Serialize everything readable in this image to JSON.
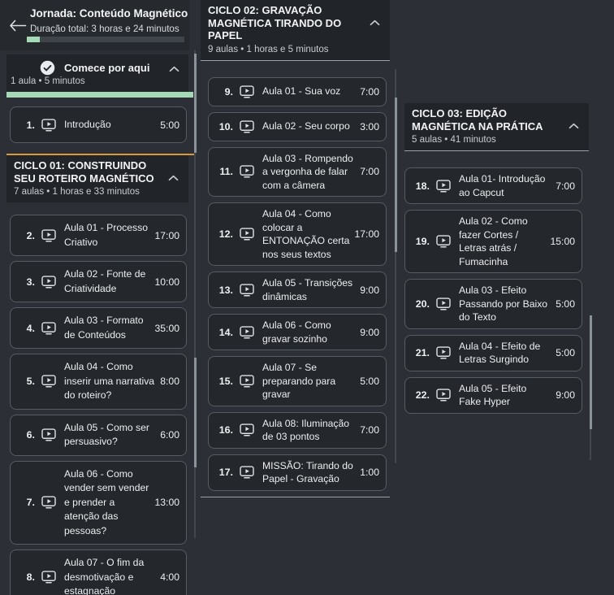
{
  "theme": {
    "page_bg": "#2c3036",
    "header_bg": "#26292e",
    "section_bg": "#212428",
    "card_bg": "#24272b",
    "card_border": "#565c63",
    "divider_orange": "#d59a3c",
    "progress_green": "#a5d9b7",
    "scrollbar_thumb": "#8b9299"
  },
  "header": {
    "title": "Jornada: Conteúdo Magnético",
    "subtitle": "Duração total: 3 horas e 24 minutos",
    "progress_percent": 8
  },
  "columns": [
    {
      "sections": [
        {
          "id": "comece-por-aqui",
          "start": true,
          "completed": true,
          "collapsed": false,
          "title": "Comece por aqui",
          "meta": "1 aula • 5 minutos",
          "progress_percent": 100,
          "items": [
            {
              "num": "1.",
              "title": "Introdução",
              "duration": "5:00"
            }
          ]
        },
        {
          "id": "ciclo-01",
          "divider_top": true,
          "collapsed": false,
          "title": "CICLO 01: CONSTRUINDO SEU ROTEIRO MAGNÉTICO",
          "meta": "7 aulas • 1 horas e 33 minutos",
          "items": [
            {
              "num": "2.",
              "title": "Aula 01 - Processo Criativo",
              "duration": "17:00"
            },
            {
              "num": "3.",
              "title": "Aula 02 - Fonte de Criatividade",
              "duration": "10:00"
            },
            {
              "num": "4.",
              "title": "Aula 03 - Formato de Conteúdos",
              "duration": "35:00"
            },
            {
              "num": "5.",
              "title": "Aula 04 - Como inserir uma narrativa do roteiro?",
              "duration": "8:00"
            },
            {
              "num": "6.",
              "title": "Aula 05 - Como ser persuasivo?",
              "duration": "6:00"
            },
            {
              "num": "7.",
              "title": "Aula 06 - Como vender sem vender e prender a atenção das pessoas?",
              "duration": "13:00"
            },
            {
              "num": "8.",
              "title": "Aula 07 - O fim da desmotivação e estagnação",
              "duration": "4:00"
            }
          ]
        }
      ]
    },
    {
      "sections": [
        {
          "id": "ciclo-02",
          "collapsed": false,
          "bottom_border": true,
          "title": "CICLO 02: GRAVAÇÃO MAGNÉTICA TIRANDO DO PAPEL",
          "meta": "9 aulas • 1 horas e 5 minutos",
          "items": [
            {
              "num": "9.",
              "title": "Aula 01 - Sua voz",
              "duration": "7:00"
            },
            {
              "num": "10.",
              "title": "Aula 02 - Seu corpo",
              "duration": "3:00"
            },
            {
              "num": "11.",
              "title": "Aula 03 - Rompendo a vergonha de falar com a câmera",
              "duration": "7:00"
            },
            {
              "num": "12.",
              "title": "Aula 04 - Como colocar a ENTONAÇÃO certa nos seus textos",
              "duration": "17:00"
            },
            {
              "num": "13.",
              "title": "Aula 05 - Transições dinâmicas",
              "duration": "9:00"
            },
            {
              "num": "14.",
              "title": "Aula 06 - Como gravar sozinho",
              "duration": "9:00"
            },
            {
              "num": "15.",
              "title": "Aula 07 - Se preparando para gravar",
              "duration": "5:00"
            },
            {
              "num": "16.",
              "title": "Aula 08: Iluminação de 03 pontos",
              "duration": "7:00"
            },
            {
              "num": "17.",
              "title": "MISSÃO: Tirando do Papel - Gravação",
              "duration": "1:00"
            }
          ]
        }
      ]
    },
    {
      "sections": [
        {
          "id": "ciclo-03",
          "collapsed": false,
          "title": "CICLO 03: EDIÇÃO MAGNÉTICA NA PRÁTICA",
          "meta": "5 aulas • 41 minutos",
          "items": [
            {
              "num": "18.",
              "title": "Aula 01- Introdução ao Capcut",
              "duration": "7:00"
            },
            {
              "num": "19.",
              "title": "Aula 02 - Como fazer Cortes / Letras atrás / Fumacinha",
              "duration": "15:00"
            },
            {
              "num": "20.",
              "title": "Aula 03 - Efeito Passando por Baixo do Texto",
              "duration": "5:00"
            },
            {
              "num": "21.",
              "title": "Aula 04 - Efeito de Letras Surgindo",
              "duration": "5:00"
            },
            {
              "num": "22.",
              "title": "Aula 05 - Efeito Fake Hyper",
              "duration": "9:00"
            }
          ]
        }
      ]
    }
  ]
}
